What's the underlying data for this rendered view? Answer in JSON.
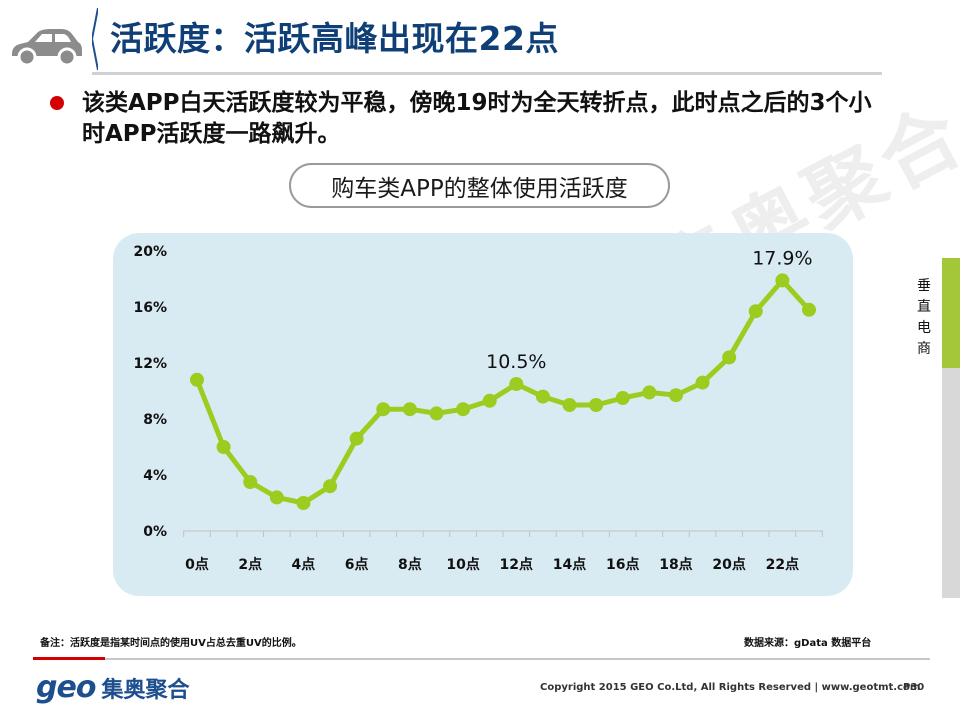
{
  "header": {
    "title": "活跃度：活跃高峰出现在22点",
    "icon": "car-icon",
    "accent_color": "#0f3f77"
  },
  "bullet": {
    "text": "该类APP白天活跃度较为平稳，傍晚19时为全天转折点，此时点之后的3个小时APP活跃度一路飙升。",
    "dot_color": "#d40000"
  },
  "watermark": "集奥聚合",
  "chart_title": "购车类APP的整体使用活跃度",
  "chart_data": {
    "type": "line",
    "x": [
      0,
      1,
      2,
      3,
      4,
      5,
      6,
      7,
      8,
      9,
      10,
      11,
      12,
      13,
      14,
      15,
      16,
      17,
      18,
      19,
      20,
      21,
      22,
      23
    ],
    "xticks": [
      "0点",
      "2点",
      "4点",
      "6点",
      "8点",
      "10点",
      "12点",
      "14点",
      "16点",
      "18点",
      "20点",
      "22点"
    ],
    "series": [
      {
        "values": [
          10.8,
          6.0,
          3.5,
          2.4,
          2.0,
          3.2,
          6.6,
          8.7,
          8.7,
          8.4,
          8.7,
          9.3,
          10.5,
          9.6,
          9.0,
          9.0,
          9.5,
          9.9,
          9.7,
          10.6,
          12.4,
          15.7,
          17.9,
          15.8
        ],
        "color": "#9acd1f"
      }
    ],
    "yticks": [
      "20%",
      "16%",
      "12%",
      "8%",
      "4%",
      "0%"
    ],
    "ylim": [
      0,
      20
    ],
    "annotations": [
      {
        "x": 12,
        "label": "10.5%"
      },
      {
        "x": 22,
        "label": "17.9%"
      }
    ],
    "grid": false,
    "legend": "none",
    "background": "#d9ebf2"
  },
  "side_label": "垂直电商",
  "note": "备注：活跃度是指某时间点的使用UV占总去重UV的比例。",
  "source": "数据来源：gData 数据平台",
  "logo": {
    "brand": "geo",
    "name": "集奥聚合"
  },
  "copyright": "Copyright 2015 GEO Co.Ltd, All Rights Reserved  |  www.geotmt.com",
  "page_number": "P30"
}
